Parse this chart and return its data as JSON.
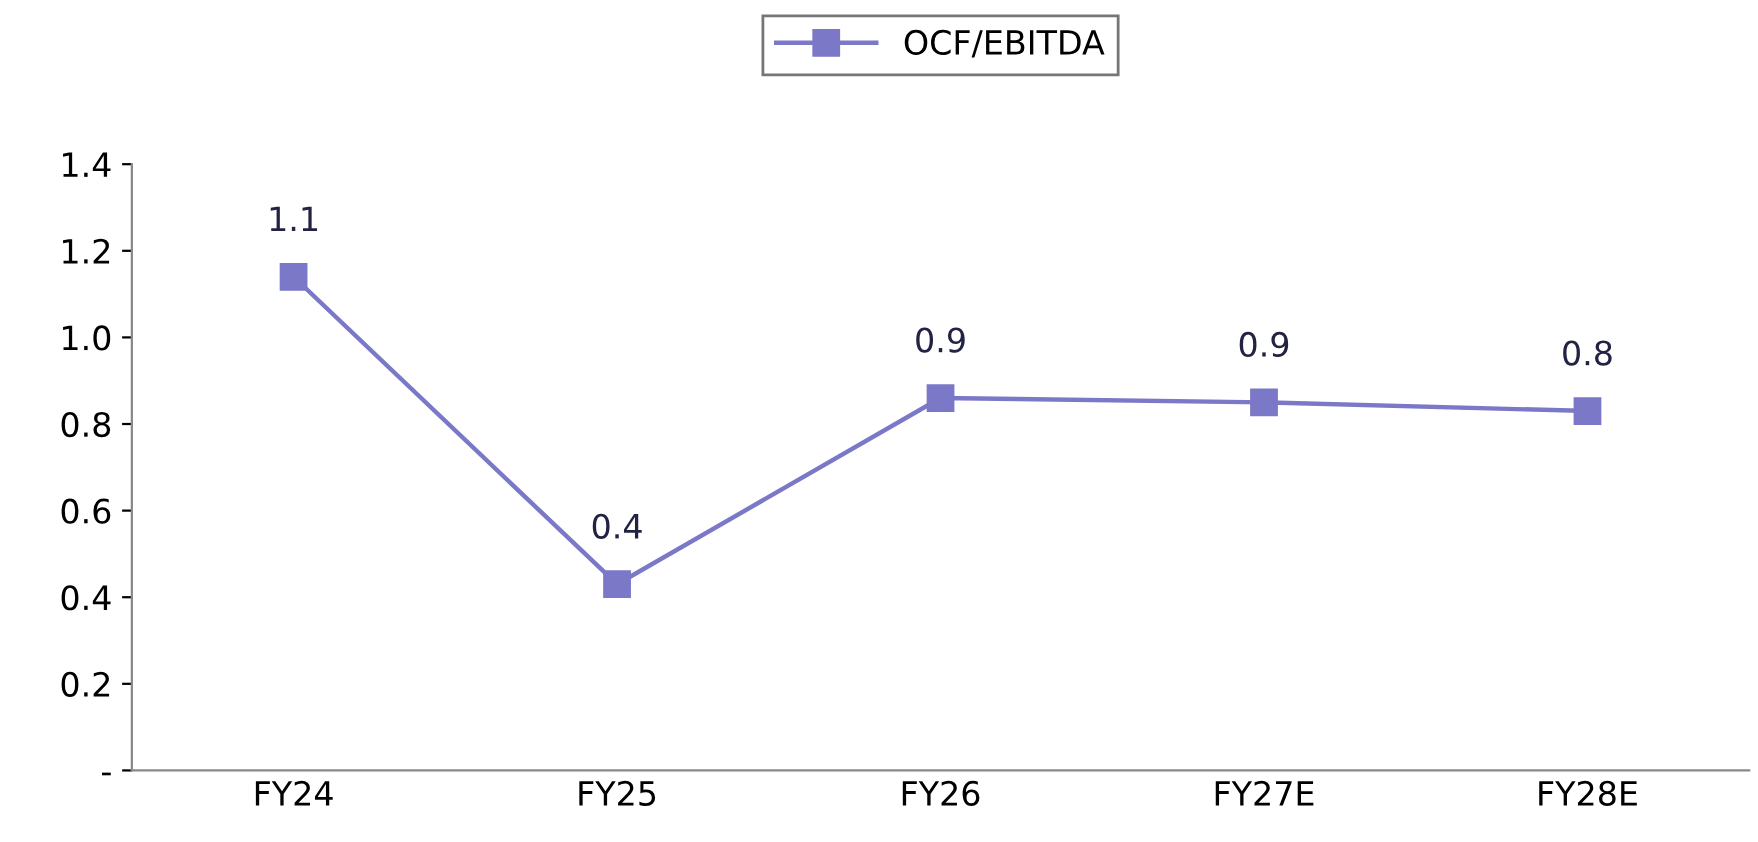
{
  "chart_data": {
    "type": "line",
    "categories": [
      "FY24",
      "FY25",
      "FY26",
      "FY27E",
      "FY28E"
    ],
    "series": [
      {
        "name": "OCF/EBITDA",
        "color": "#7b78c8",
        "values": [
          1.14,
          0.43,
          0.86,
          0.85,
          0.83
        ],
        "value_labels": [
          "1.1",
          "0.4",
          "0.9",
          "0.9",
          "0.8"
        ]
      }
    ],
    "ylim": [
      0,
      1.4
    ],
    "yticks": [
      {
        "value": 0,
        "label": "-"
      },
      0.2,
      0.4,
      0.6,
      0.8,
      {
        "value": 1,
        "label": "1.0"
      },
      1.2,
      1.4
    ],
    "grid": false,
    "legend": "top",
    "marker": "square",
    "line_style": "solid"
  }
}
